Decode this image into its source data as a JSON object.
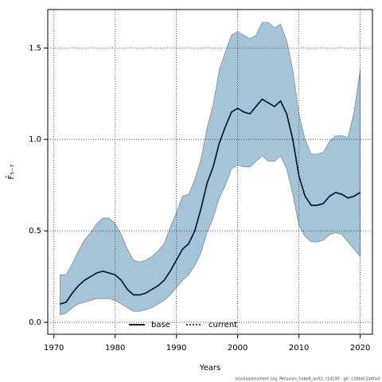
{
  "chart_data": {
    "type": "line",
    "xlabel": "Years",
    "ylabel": "F̄₅₋₇",
    "footnote": "stockassessment.org, Peruvian_hake8_an01, r14195 , git: c28bdc2a4fad",
    "x": [
      1971,
      1972,
      1973,
      1974,
      1975,
      1976,
      1977,
      1978,
      1979,
      1980,
      1981,
      1982,
      1983,
      1984,
      1985,
      1986,
      1987,
      1988,
      1989,
      1990,
      1991,
      1992,
      1993,
      1994,
      1995,
      1996,
      1997,
      1998,
      1999,
      2000,
      2001,
      2002,
      2003,
      2004,
      2005,
      2006,
      2007,
      2008,
      2009,
      2010,
      2011,
      2012,
      2013,
      2014,
      2015,
      2016,
      2017,
      2018,
      2019,
      2020
    ],
    "series": [
      {
        "name": "base",
        "color": "#000000",
        "dash": "solid",
        "values": [
          0.1,
          0.11,
          0.16,
          0.2,
          0.23,
          0.25,
          0.27,
          0.28,
          0.27,
          0.26,
          0.23,
          0.18,
          0.15,
          0.15,
          0.16,
          0.18,
          0.2,
          0.23,
          0.28,
          0.34,
          0.4,
          0.43,
          0.5,
          0.62,
          0.76,
          0.85,
          0.98,
          1.07,
          1.15,
          1.17,
          1.15,
          1.14,
          1.18,
          1.22,
          1.2,
          1.18,
          1.21,
          1.14,
          1.0,
          0.8,
          0.69,
          0.64,
          0.64,
          0.65,
          0.69,
          0.71,
          0.7,
          0.68,
          0.69,
          0.71
        ]
      },
      {
        "name": "current",
        "color": "#0a2a6e",
        "dash": "dotted",
        "values": [
          0.1,
          0.11,
          0.16,
          0.2,
          0.23,
          0.25,
          0.27,
          0.28,
          0.27,
          0.26,
          0.23,
          0.18,
          0.15,
          0.15,
          0.16,
          0.18,
          0.2,
          0.23,
          0.28,
          0.34,
          0.4,
          0.43,
          0.5,
          0.62,
          0.76,
          0.85,
          0.98,
          1.07,
          1.15,
          1.17,
          1.15,
          1.14,
          1.18,
          1.22,
          1.2,
          1.18,
          1.21,
          1.14,
          1.0,
          0.8,
          0.69,
          0.64,
          0.64,
          0.65,
          0.69,
          0.71,
          0.7,
          0.68,
          0.69,
          0.71
        ]
      }
    ],
    "band": {
      "color": "#a5c5d7",
      "upper": [
        0.26,
        0.26,
        0.32,
        0.39,
        0.45,
        0.49,
        0.54,
        0.57,
        0.57,
        0.54,
        0.48,
        0.4,
        0.34,
        0.33,
        0.34,
        0.36,
        0.39,
        0.43,
        0.52,
        0.6,
        0.69,
        0.7,
        0.78,
        0.89,
        1.06,
        1.19,
        1.38,
        1.48,
        1.57,
        1.59,
        1.57,
        1.55,
        1.57,
        1.64,
        1.64,
        1.61,
        1.63,
        1.54,
        1.38,
        1.14,
        1.0,
        0.92,
        0.92,
        0.93,
        0.99,
        1.02,
        1.02,
        1.01,
        1.15,
        1.38
      ],
      "lower": [
        0.04,
        0.05,
        0.08,
        0.1,
        0.11,
        0.12,
        0.13,
        0.13,
        0.13,
        0.12,
        0.1,
        0.08,
        0.06,
        0.06,
        0.07,
        0.08,
        0.1,
        0.12,
        0.15,
        0.19,
        0.23,
        0.26,
        0.31,
        0.38,
        0.49,
        0.57,
        0.68,
        0.75,
        0.84,
        0.86,
        0.85,
        0.85,
        0.88,
        0.91,
        0.88,
        0.88,
        0.91,
        0.84,
        0.7,
        0.53,
        0.47,
        0.44,
        0.44,
        0.45,
        0.48,
        0.49,
        0.48,
        0.44,
        0.4,
        0.36
      ]
    },
    "xlim": [
      1969,
      2022
    ],
    "ylim": [
      -0.065,
      1.71
    ],
    "xticks": [
      1970,
      1980,
      1990,
      2000,
      2010,
      2020
    ],
    "yticks": [
      {
        "value": 0,
        "label": "0.0"
      },
      0.5,
      {
        "value": 1,
        "label": "1.0"
      },
      {
        "value": 1.5,
        "label": "1.5"
      }
    ],
    "grid": true,
    "legend": "bottom"
  }
}
